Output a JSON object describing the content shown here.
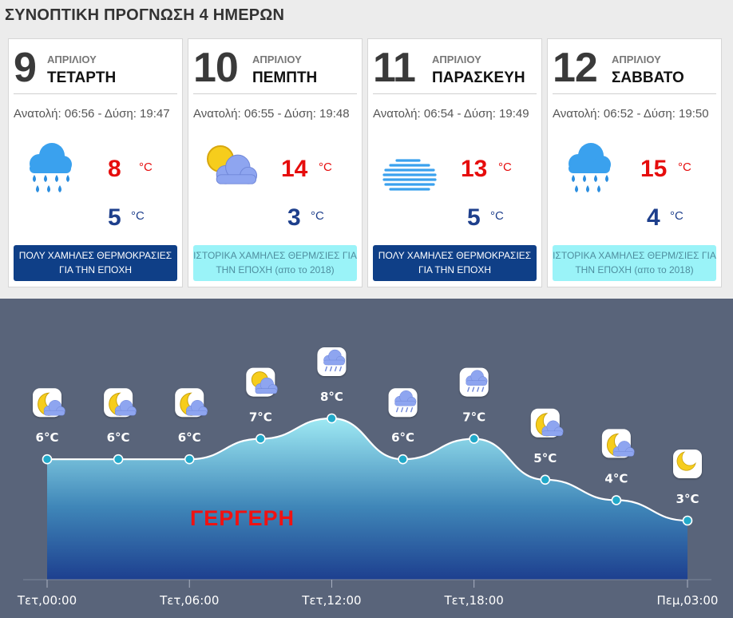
{
  "title": "ΣΥΝΟΠΤΙΚΗ ΠΡΟΓΝΩΣΗ 4 ΗΜΕΡΩΝ",
  "days": [
    {
      "day": "9",
      "month": "ΑΠΡΙΛΙΟΥ",
      "weekday": "ΤΕΤΑΡΤΗ",
      "sun": "Ανατολή: 06:56 - Δύση: 19:47",
      "icon": "rain-cloud-icon",
      "max": "8",
      "min": "5",
      "unit": "°C",
      "badge": "ΠΟΛΥ ΧΑΜΗΛΕΣ ΘΕΡΜΟΚΡΑΣΙΕΣ ΓΙΑ ΤΗΝ ΕΠΟΧΗ",
      "badge_style": "dark"
    },
    {
      "day": "10",
      "month": "ΑΠΡΙΛΙΟΥ",
      "weekday": "ΠΕΜΠΤΗ",
      "sun": "Ανατολή: 06:55 - Δύση: 19:48",
      "icon": "partly-cloudy-icon",
      "max": "14",
      "min": "3",
      "unit": "°C",
      "badge": "ΙΣΤΟΡΙΚΑ ΧΑΜΗΛΕΣ ΘΕΡΜ/ΣΙΕΣ ΓΙΑ ΤΗΝ ΕΠΟΧΗ (απο το 2018)",
      "badge_style": "light"
    },
    {
      "day": "11",
      "month": "ΑΠΡΙΛΙΟΥ",
      "weekday": "ΠΑΡΑΣΚΕΥΗ",
      "sun": "Ανατολή: 06:54 - Δύση: 19:49",
      "icon": "fog-cloud-icon",
      "max": "13",
      "min": "5",
      "unit": "°C",
      "badge": "ΠΟΛΥ ΧΑΜΗΛΕΣ ΘΕΡΜΟΚΡΑΣΙΕΣ ΓΙΑ ΤΗΝ ΕΠΟΧΗ",
      "badge_style": "dark"
    },
    {
      "day": "12",
      "month": "ΑΠΡΙΛΙΟΥ",
      "weekday": "ΣΑΒΒΑΤΟ",
      "sun": "Ανατολή: 06:52 - Δύση: 19:50",
      "icon": "rain-cloud-icon",
      "max": "15",
      "min": "4",
      "unit": "°C",
      "badge": "ΙΣΤΟΡΙΚΑ ΧΑΜΗΛΕΣ ΘΕΡΜ/ΣΙΕΣ ΓΙΑ ΤΗΝ ΕΠΟΧΗ (απο το 2018)",
      "badge_style": "light"
    }
  ],
  "chart_data": {
    "type": "area",
    "x": [
      "Τετ,00:00",
      "Τετ,03:00",
      "Τετ,06:00",
      "Τετ,09:00",
      "Τετ,12:00",
      "Τετ,15:00",
      "Τετ,18:00",
      "Τετ,21:00",
      "Πεμ,00:00",
      "Πεμ,03:00"
    ],
    "tick_labels": [
      "Τετ,00:00",
      "Τετ,06:00",
      "Τετ,12:00",
      "Τετ,18:00",
      "Πεμ,03:00"
    ],
    "values": [
      6,
      6,
      6,
      7,
      8,
      6,
      7,
      5,
      4,
      3
    ],
    "labels": [
      "6°C",
      "6°C",
      "6°C",
      "7°C",
      "8°C",
      "6°C",
      "7°C",
      "5°C",
      "4°C",
      "3°C"
    ],
    "icons": [
      "moon-cloud-icon",
      "moon-cloud-icon",
      "moon-cloud-icon",
      "sun-cloud-icon",
      "rain-cloud-icon",
      "rain-cloud-icon",
      "rain-cloud-icon",
      "moon-cloud-icon",
      "moon-cloud-icon",
      "moon-icon"
    ],
    "ylim": [
      3,
      8
    ],
    "colors": {
      "line": "#ffffff",
      "point": "#22a9c9",
      "fill_top": "#9ee9f3",
      "fill_bottom": "#1d3f8f",
      "panel": "#59647a"
    }
  },
  "place_name": "ΓΕΡΓΕΡΗ"
}
